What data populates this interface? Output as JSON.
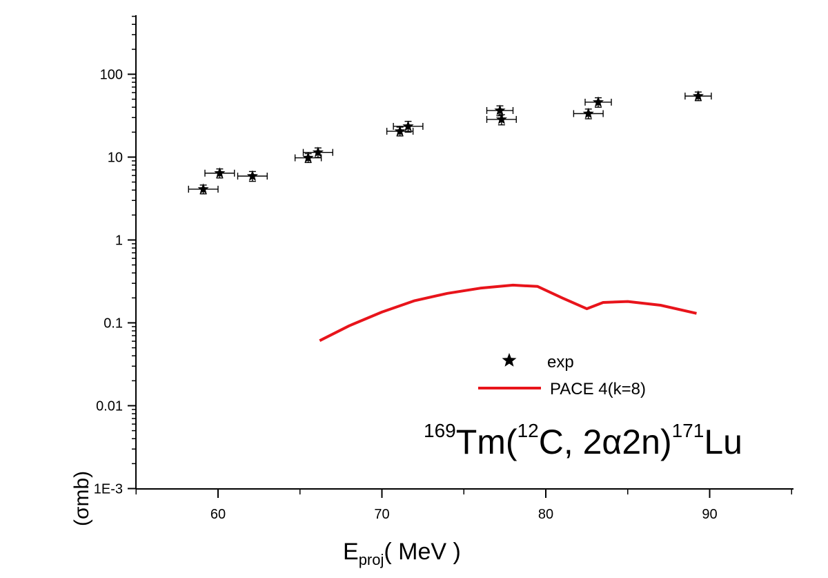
{
  "chart_data": {
    "type": "scatter",
    "title": "",
    "xlabel": {
      "main": "E",
      "sub": "proj",
      "rest": "( MeV )"
    },
    "ylabel": "(σmb)",
    "xlim": [
      55,
      95
    ],
    "ylim": [
      0.001,
      500
    ],
    "yscale": "log",
    "x_ticks": [
      60,
      70,
      80,
      90
    ],
    "x_tick_labels": [
      "60",
      "70",
      "80",
      "90"
    ],
    "y_ticks": [
      0.001,
      0.01,
      0.1,
      1,
      10,
      100
    ],
    "y_tick_labels": [
      "1E-3",
      "0.01",
      "0.1",
      "1",
      "10",
      "100"
    ],
    "grid": false,
    "legend_placement": "lower-right",
    "series": [
      {
        "name": "exp",
        "kind": "scatter",
        "marker": "star",
        "color": "#000000",
        "points": [
          {
            "x": 59.1,
            "y": 4.1,
            "xerr": 0.9,
            "yerr": 0.5
          },
          {
            "x": 60.1,
            "y": 6.4,
            "xerr": 0.9,
            "yerr": 0.8
          },
          {
            "x": 62.1,
            "y": 5.9,
            "xerr": 0.9,
            "yerr": 0.8
          },
          {
            "x": 65.5,
            "y": 9.8,
            "xerr": 0.8,
            "yerr": 1.2
          },
          {
            "x": 66.1,
            "y": 11.4,
            "xerr": 0.9,
            "yerr": 1.5
          },
          {
            "x": 71.1,
            "y": 20.5,
            "xerr": 0.8,
            "yerr": 2.5
          },
          {
            "x": 71.6,
            "y": 23.5,
            "xerr": 0.9,
            "yerr": 3.5
          },
          {
            "x": 77.2,
            "y": 36.5,
            "xerr": 0.8,
            "yerr": 5.0
          },
          {
            "x": 77.3,
            "y": 28.5,
            "xerr": 0.9,
            "yerr": 4.0
          },
          {
            "x": 82.6,
            "y": 33.5,
            "xerr": 0.9,
            "yerr": 4.5
          },
          {
            "x": 83.2,
            "y": 46.0,
            "xerr": 0.8,
            "yerr": 6.0
          },
          {
            "x": 89.3,
            "y": 54.5,
            "xerr": 0.8,
            "yerr": 6.5
          }
        ]
      },
      {
        "name": "PACE 4(k=8)",
        "kind": "line",
        "color": "#e8141b",
        "points": [
          {
            "x": 66.2,
            "y": 0.061
          },
          {
            "x": 68.0,
            "y": 0.092
          },
          {
            "x": 70.0,
            "y": 0.135
          },
          {
            "x": 72.0,
            "y": 0.185
          },
          {
            "x": 74.0,
            "y": 0.227
          },
          {
            "x": 76.0,
            "y": 0.262
          },
          {
            "x": 78.0,
            "y": 0.285
          },
          {
            "x": 79.5,
            "y": 0.275
          },
          {
            "x": 81.0,
            "y": 0.2
          },
          {
            "x": 82.5,
            "y": 0.148
          },
          {
            "x": 83.5,
            "y": 0.176
          },
          {
            "x": 85.0,
            "y": 0.181
          },
          {
            "x": 87.0,
            "y": 0.163
          },
          {
            "x": 89.2,
            "y": 0.13
          }
        ]
      }
    ],
    "annotation": {
      "parts": [
        {
          "text": "169",
          "sup": true
        },
        {
          "text": "Tm(",
          "sup": false
        },
        {
          "text": "12",
          "sup": true
        },
        {
          "text": "C, 2α2n)",
          "sup": false
        },
        {
          "text": "171",
          "sup": true
        },
        {
          "text": "Lu",
          "sup": false
        }
      ]
    }
  }
}
